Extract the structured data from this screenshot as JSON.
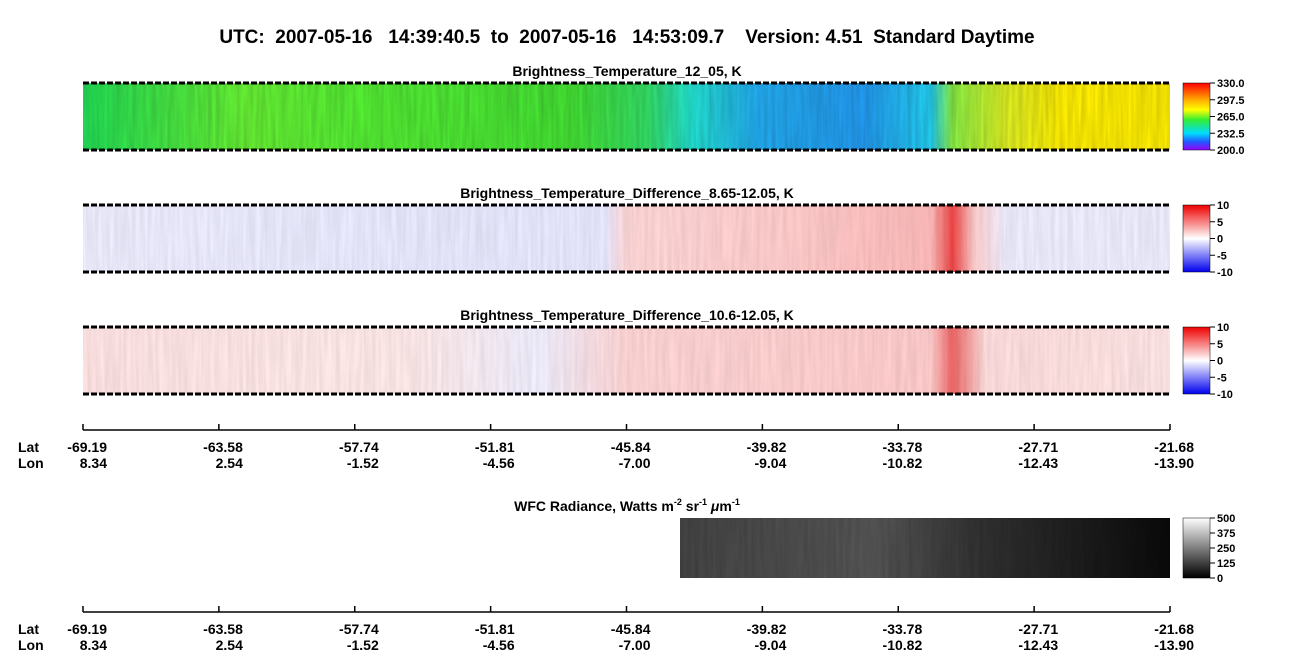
{
  "header": {
    "title": "UTC:  2007-05-16   14:39:40.5  to  2007-05-16   14:53:09.7    Version: 4.51  Standard Daytime"
  },
  "panels": [
    {
      "title": "Brightness_Temperature_12_05, K",
      "colorbar": [
        "330.0",
        "297.5",
        "265.0",
        "232.5",
        "200.0"
      ]
    },
    {
      "title": "Brightness_Temperature_Difference_8.65-12.05, K",
      "colorbar": [
        "10",
        "5",
        "0",
        "-5",
        "-10"
      ]
    },
    {
      "title": "Brightness_Temperature_Difference_10.6-12.05, K",
      "colorbar": [
        "10",
        "5",
        "0",
        "-5",
        "-10"
      ]
    }
  ],
  "axis": {
    "lat_label": "Lat",
    "lon_label": "Lon",
    "lat": [
      "-69.19",
      "-63.58",
      "-57.74",
      "-51.81",
      "-45.84",
      "-39.82",
      "-33.78",
      "-27.71",
      "-21.68"
    ],
    "lon": [
      "8.34",
      "2.54",
      "-1.52",
      "-4.56",
      "-7.00",
      "-9.04",
      "-10.82",
      "-12.43",
      "-13.90"
    ]
  },
  "wfc": {
    "title": "WFC Radiance, Watts m",
    "sup1": "-2",
    "unit2": " sr",
    "sup2": "-1",
    "mu": " μ",
    "unit3": "m",
    "sup3": "-1",
    "colorbar": [
      "500",
      "375",
      "250",
      "125",
      "0"
    ]
  }
}
